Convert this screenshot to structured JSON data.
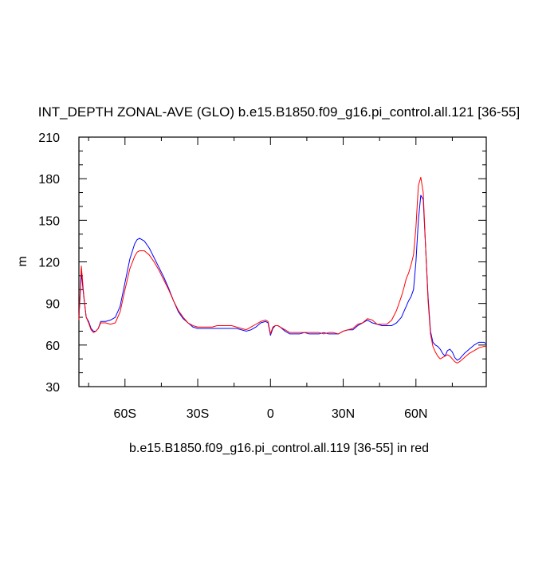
{
  "chart_data": {
    "type": "line",
    "title": "INT_DEPTH ZONAL-AVE (GLO) b.e15.B1850.f09_g16.pi_control.all.121 [36-55]",
    "xlabel": "b.e15.B1850.f09_g16.pi_control.all.119 [36-55] in red",
    "ylabel": "m",
    "xlim": [
      -79,
      89
    ],
    "ylim": [
      30,
      210
    ],
    "x_ticks": [
      -60,
      -30,
      0,
      30,
      60
    ],
    "x_tick_labels": [
      "60S",
      "30S",
      "0",
      "30N",
      "60N"
    ],
    "y_ticks": [
      30,
      60,
      90,
      120,
      150,
      180,
      210
    ],
    "y_tick_labels": [
      "30",
      "60",
      "90",
      "120",
      "150",
      "180",
      "210"
    ],
    "grid": false,
    "series": [
      {
        "color": "#0000ff",
        "x": [
          -79,
          -78,
          -77,
          -76,
          -75,
          -74,
          -73,
          -72,
          -71,
          -70,
          -68,
          -66,
          -64,
          -62,
          -60,
          -58,
          -56,
          -55,
          -54,
          -52,
          -50,
          -48,
          -46,
          -44,
          -42,
          -40,
          -38,
          -36,
          -34,
          -32,
          -30,
          -28,
          -26,
          -24,
          -22,
          -20,
          -18,
          -16,
          -14,
          -12,
          -10,
          -8,
          -6,
          -4,
          -2,
          -1,
          0,
          1,
          2,
          3,
          4,
          6,
          8,
          10,
          12,
          14,
          16,
          18,
          20,
          22,
          24,
          26,
          28,
          30,
          32,
          34,
          36,
          38,
          40,
          42,
          44,
          46,
          48,
          50,
          52,
          54,
          55,
          56,
          57,
          58,
          59,
          60,
          61,
          62,
          63,
          64,
          65,
          66,
          67,
          68,
          69,
          70,
          71,
          72,
          73,
          74,
          75,
          76,
          77,
          78,
          80,
          82,
          84,
          86,
          88,
          89
        ],
        "y": [
          80,
          112,
          95,
          80,
          77,
          72,
          70,
          70,
          72,
          77,
          77,
          78,
          80,
          88,
          105,
          122,
          133,
          136,
          137,
          135,
          130,
          123,
          116,
          109,
          101,
          92,
          84,
          79,
          76,
          73,
          72,
          72,
          72,
          72,
          72,
          72,
          72,
          72,
          72,
          71,
          70,
          71,
          73,
          76,
          77,
          76,
          67,
          72,
          74,
          74,
          73,
          70,
          68,
          68,
          68,
          69,
          68,
          68,
          68,
          69,
          68,
          68,
          68,
          70,
          71,
          71,
          74,
          76,
          78,
          76,
          75,
          74,
          74,
          74,
          76,
          80,
          84,
          88,
          92,
          95,
          100,
          120,
          150,
          168,
          165,
          130,
          95,
          70,
          62,
          60,
          59,
          57,
          54,
          52,
          56,
          57,
          55,
          51,
          49,
          50,
          54,
          57,
          60,
          62,
          62,
          61
        ]
      },
      {
        "color": "#ff0000",
        "x": [
          -79,
          -78,
          -77,
          -76,
          -75,
          -74,
          -73,
          -72,
          -71,
          -70,
          -68,
          -66,
          -64,
          -62,
          -60,
          -58,
          -56,
          -55,
          -54,
          -52,
          -50,
          -48,
          -46,
          -44,
          -42,
          -40,
          -38,
          -36,
          -34,
          -32,
          -30,
          -28,
          -26,
          -24,
          -22,
          -20,
          -18,
          -16,
          -14,
          -12,
          -10,
          -8,
          -6,
          -4,
          -2,
          -1,
          0,
          1,
          2,
          3,
          4,
          6,
          8,
          10,
          12,
          14,
          16,
          18,
          20,
          22,
          24,
          26,
          28,
          30,
          32,
          34,
          36,
          38,
          40,
          42,
          44,
          46,
          48,
          50,
          52,
          54,
          55,
          56,
          57,
          58,
          59,
          60,
          61,
          62,
          63,
          64,
          65,
          66,
          67,
          68,
          69,
          70,
          71,
          72,
          73,
          74,
          75,
          76,
          77,
          78,
          80,
          82,
          84,
          86,
          88,
          89
        ],
        "y": [
          78,
          117,
          96,
          80,
          76,
          71,
          69,
          70,
          72,
          76,
          76,
          75,
          76,
          84,
          100,
          115,
          124,
          127,
          128,
          128,
          125,
          120,
          114,
          107,
          100,
          92,
          85,
          80,
          76,
          74,
          73,
          73,
          73,
          73,
          74,
          74,
          74,
          74,
          73,
          72,
          71,
          73,
          75,
          77,
          78,
          77,
          68,
          73,
          74,
          74,
          73,
          71,
          69,
          69,
          69,
          69,
          69,
          69,
          69,
          68,
          69,
          69,
          68,
          70,
          71,
          72,
          75,
          76,
          79,
          78,
          75,
          75,
          75,
          78,
          85,
          95,
          101,
          108,
          112,
          118,
          125,
          145,
          175,
          181,
          170,
          130,
          92,
          68,
          59,
          55,
          52,
          50,
          51,
          52,
          53,
          52,
          50,
          48,
          47,
          48,
          51,
          54,
          56,
          58,
          59,
          59
        ]
      }
    ]
  }
}
